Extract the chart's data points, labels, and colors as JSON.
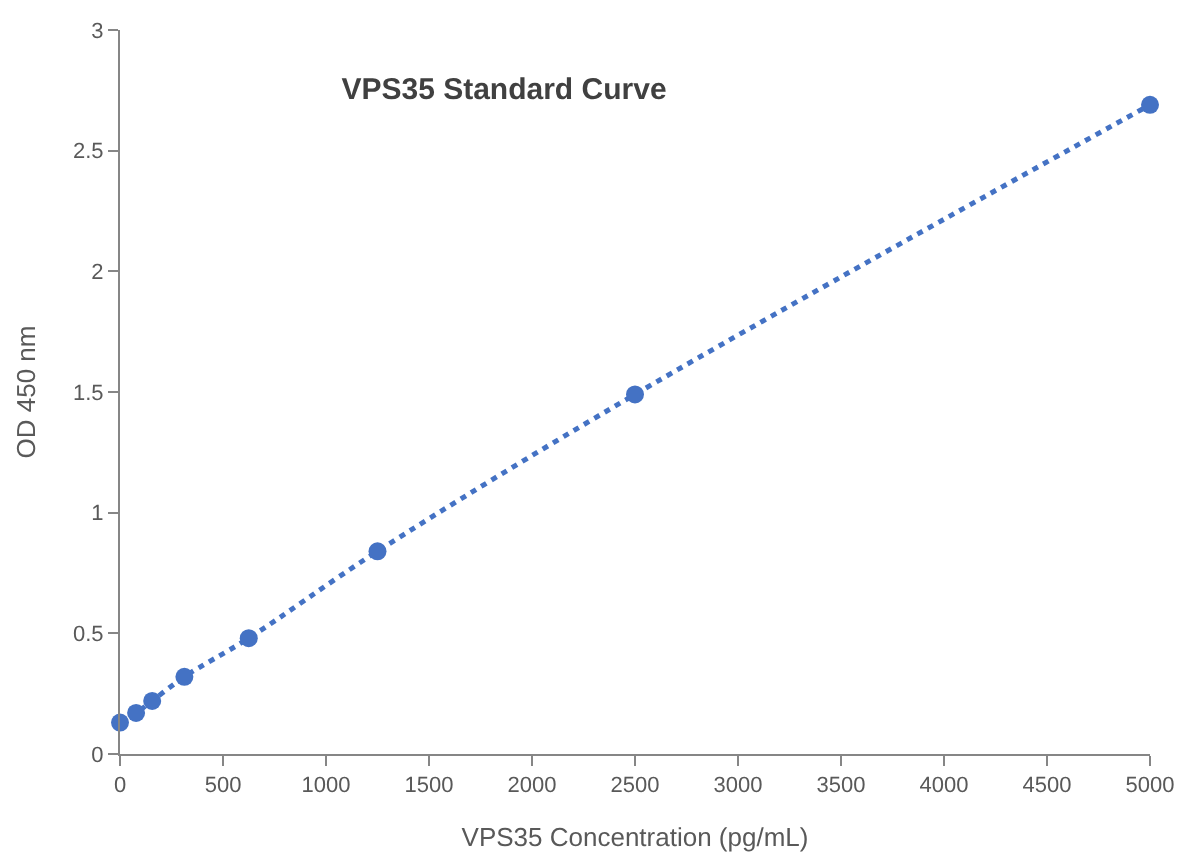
{
  "chart_data": {
    "type": "scatter",
    "title": "VPS35 Standard Curve",
    "xlabel": "VPS35 Concentration (pg/mL)",
    "ylabel": "OD 450 nm",
    "series": [
      {
        "color": "#4472c4",
        "marker": "circle",
        "x": [
          0,
          78.125,
          156.25,
          312.5,
          625,
          1250,
          2500,
          5000
        ],
        "values": [
          0.13,
          0.17,
          0.22,
          0.32,
          0.48,
          0.84,
          1.49,
          2.69
        ]
      },
      {
        "type": "line",
        "color": "#4472c4",
        "line_style": "dotted",
        "x": [
          0,
          78.125,
          156.25,
          312.5,
          625,
          1250,
          2500,
          5000
        ],
        "values": [
          0.13,
          0.17,
          0.22,
          0.32,
          0.48,
          0.84,
          1.49,
          2.69
        ]
      }
    ],
    "xlim": [
      0,
      5000
    ],
    "xticks": [
      0,
      500,
      1000,
      1500,
      2000,
      2500,
      3000,
      3500,
      4000,
      4500,
      5000
    ],
    "ylim": [
      0,
      3
    ],
    "yticks": [
      0,
      0.5,
      1,
      1.5,
      2,
      2.5,
      3
    ]
  }
}
